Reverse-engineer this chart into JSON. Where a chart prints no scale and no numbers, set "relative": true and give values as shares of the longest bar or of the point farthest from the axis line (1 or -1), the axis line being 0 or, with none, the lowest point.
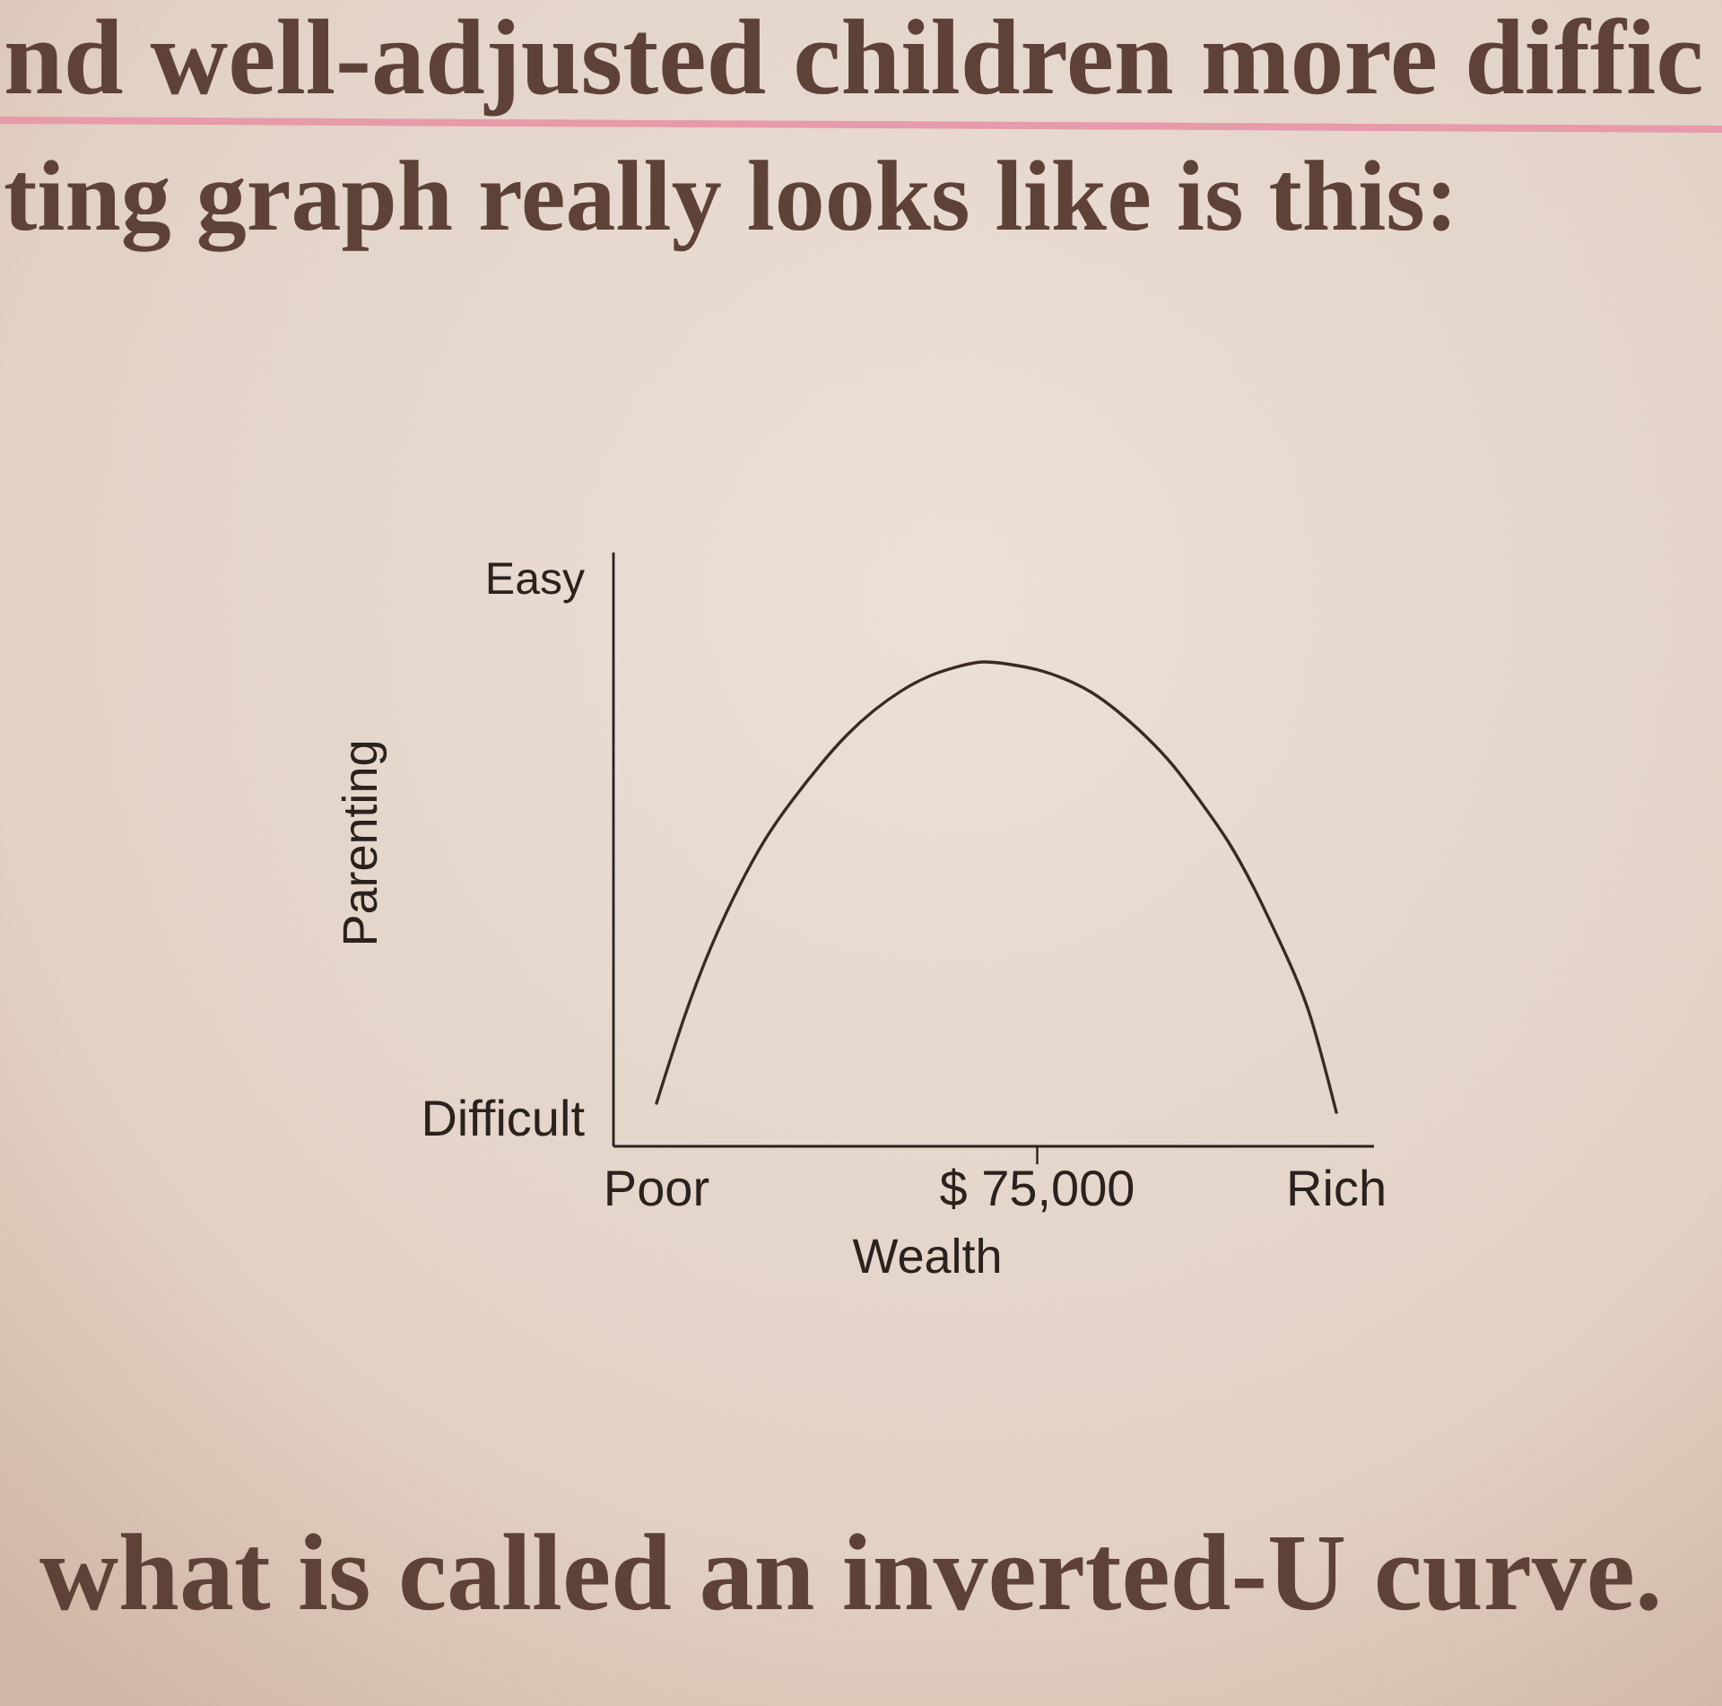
{
  "chart_data": {
    "type": "line",
    "title": "nd well-adjusted children more diffic",
    "subtitle": "ting graph really looks like is this:",
    "xlabel": "Wealth",
    "ylabel": "Parenting",
    "relative": true,
    "categories": [
      "Poor",
      null,
      null,
      null,
      null,
      null,
      null,
      null,
      null,
      null,
      null,
      null,
      null,
      null,
      "$ 75,000",
      null,
      null,
      null,
      null,
      null,
      null,
      null,
      null,
      null,
      null,
      "Rich"
    ],
    "values": [
      0.089,
      0.263,
      0.411,
      0.532,
      0.634,
      0.715,
      0.786,
      0.849,
      0.9,
      0.94,
      0.97,
      0.989,
      1.0,
      0.995,
      0.984,
      0.965,
      0.937,
      0.896,
      0.846,
      0.786,
      0.712,
      0.631,
      0.53,
      0.413,
      0.276,
      0.07
    ],
    "color": "#3a2a24",
    "annotations": [
      "Easy",
      "Difficult",
      "what is called an inverted-U curve."
    ]
  }
}
